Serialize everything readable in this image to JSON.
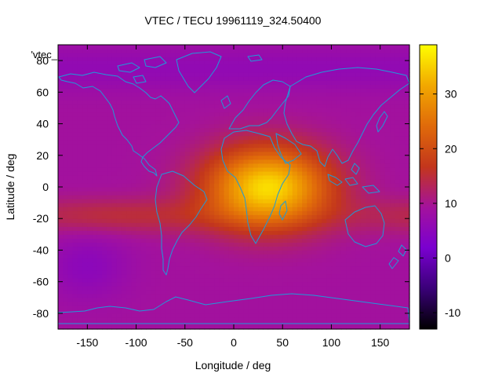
{
  "chart_data": {
    "type": "heatmap",
    "title": "VTEC / TECU 19961119_324.50400",
    "xlabel": "Longitude / deg",
    "ylabel": "Latitude / deg",
    "xlim": [
      -180,
      180
    ],
    "ylim": [
      -90,
      90
    ],
    "x_ticks": [
      -150,
      -100,
      -50,
      0,
      50,
      100,
      150
    ],
    "y_ticks": [
      -80,
      -60,
      -40,
      -20,
      0,
      20,
      40,
      60,
      80
    ],
    "x_tick_labels": [
      "-150",
      "-100",
      "-50",
      "0",
      "50",
      "100",
      "150"
    ],
    "y_tick_labels": [
      "-80",
      "-60",
      "-40",
      "-20",
      "0",
      "20",
      "40",
      "60",
      "80"
    ],
    "legend_key": "'vtec_",
    "colorbar": {
      "min": -13,
      "max": 39,
      "ticks": [
        -10,
        0,
        10,
        20,
        30
      ],
      "tick_labels": [
        "-10",
        "0",
        "10",
        "20",
        "30"
      ]
    },
    "colormap_stops": [
      "#000000",
      "#3a0078",
      "#7a00d0",
      "#a4129c",
      "#c3361c",
      "#e06a0a",
      "#f2a800",
      "#ffff00"
    ],
    "field_features": {
      "background_vtec": 9,
      "equatorial_peak": {
        "lon": 35,
        "lat": 0,
        "vtec": 36
      },
      "southern_band": {
        "lat": -18,
        "vtec": 15
      },
      "low_region": {
        "lon": -150,
        "lat": -50,
        "vtec": 5
      }
    },
    "coastline_color": "#1f9bd8"
  }
}
